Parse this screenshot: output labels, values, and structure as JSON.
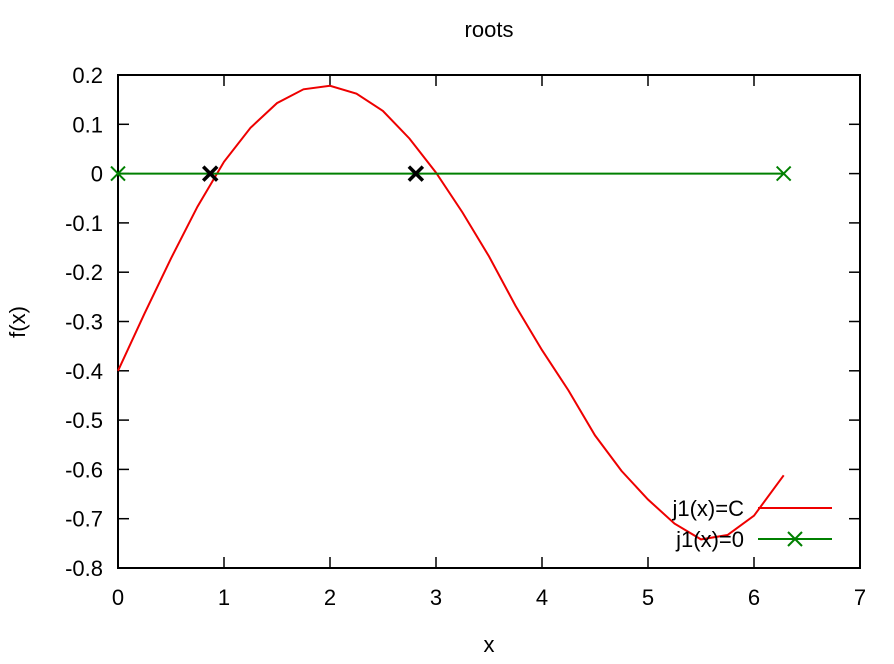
{
  "chart_data": {
    "type": "line",
    "title": "roots",
    "xlabel": "x",
    "ylabel": "f(x)",
    "xlim": [
      0,
      7
    ],
    "ylim": [
      -0.8,
      0.2
    ],
    "x_ticks": [
      0,
      1,
      2,
      3,
      4,
      5,
      6,
      7
    ],
    "y_ticks": [
      0.2,
      0.1,
      0,
      -0.1,
      -0.2,
      -0.3,
      -0.4,
      -0.5,
      -0.6,
      -0.7,
      -0.8
    ],
    "x_tick_labels": [
      "0",
      "1",
      "2",
      "3",
      "4",
      "5",
      "6",
      "7"
    ],
    "y_tick_labels": [
      "0.2",
      "0.1",
      "0",
      "-0.1",
      "-0.2",
      "-0.3",
      "-0.4",
      "-0.5",
      "-0.6",
      "-0.7",
      "-0.8"
    ],
    "grid": false,
    "legend_position": "bottom-right",
    "series": [
      {
        "name": "j1(x)=C",
        "color": "#ee0000",
        "style": "line",
        "x": [
          0,
          0.25,
          0.5,
          0.75,
          1.0,
          1.25,
          1.5,
          1.75,
          2.0,
          2.25,
          2.5,
          2.75,
          3.0,
          3.25,
          3.5,
          3.75,
          4.0,
          4.25,
          4.5,
          4.75,
          5.0,
          5.25,
          5.5,
          5.75,
          6.0,
          6.28
        ],
        "y": [
          -0.4,
          -0.284,
          -0.172,
          -0.067,
          0.024,
          0.093,
          0.143,
          0.171,
          0.178,
          0.162,
          0.127,
          0.071,
          0.002,
          -0.079,
          -0.168,
          -0.268,
          -0.358,
          -0.44,
          -0.531,
          -0.603,
          -0.661,
          -0.71,
          -0.742,
          -0.733,
          -0.694,
          -0.612
        ]
      },
      {
        "name": "j1(x)=0",
        "color": "#008000",
        "style": "line+x-markers",
        "x": [
          0,
          6.28
        ],
        "y": [
          0,
          0
        ]
      }
    ],
    "roots": {
      "color": "#000000",
      "x": [
        0.87,
        2.81
      ],
      "y": [
        0,
        0
      ]
    }
  }
}
